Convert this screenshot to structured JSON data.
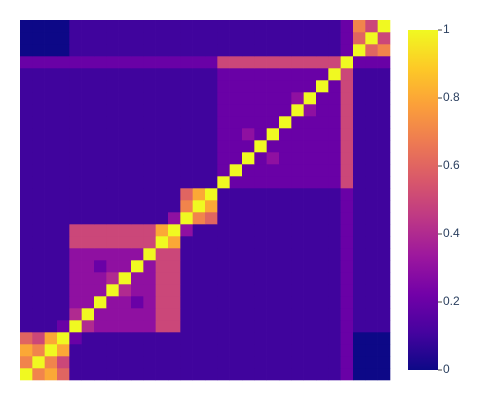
{
  "chart_data": {
    "type": "heatmap",
    "colorscale": [
      "#0d0887",
      "#46039f",
      "#7201a8",
      "#9c179e",
      "#bd3786",
      "#d8576b",
      "#ed7953",
      "#fb9f3a",
      "#fdca26",
      "#f0f921"
    ],
    "zlim": [
      0,
      1
    ],
    "zticks": [
      0,
      0.2,
      0.4,
      0.6,
      0.8,
      1
    ],
    "z": [
      [
        1,
        0.7,
        0.8,
        0.6,
        0.1,
        0.1,
        0.1,
        0.1,
        0.1,
        0.1,
        0.1,
        0.1,
        0.1,
        0.1,
        0.1,
        0.1,
        0.1,
        0.1,
        0.1,
        0.1,
        0.1,
        0.1,
        0.1,
        0.1,
        0.1,
        0.1,
        0.2,
        0,
        0,
        0
      ],
      [
        0.7,
        1,
        0.7,
        0.5,
        0.1,
        0.1,
        0.1,
        0.1,
        0.1,
        0.1,
        0.1,
        0.1,
        0.1,
        0.1,
        0.1,
        0.1,
        0.1,
        0.1,
        0.1,
        0.1,
        0.1,
        0.1,
        0.1,
        0.1,
        0.1,
        0.1,
        0.2,
        0,
        0,
        0
      ],
      [
        0.8,
        0.7,
        1,
        0.8,
        0.1,
        0.1,
        0.1,
        0.1,
        0.1,
        0.1,
        0.1,
        0.1,
        0.1,
        0.1,
        0.1,
        0.1,
        0.1,
        0.1,
        0.1,
        0.1,
        0.1,
        0.1,
        0.1,
        0.1,
        0.1,
        0.1,
        0.2,
        0,
        0,
        0
      ],
      [
        0.6,
        0.5,
        0.8,
        1,
        0.2,
        0.1,
        0.1,
        0.1,
        0.1,
        0.1,
        0.1,
        0.1,
        0.1,
        0.1,
        0.1,
        0.1,
        0.1,
        0.1,
        0.1,
        0.1,
        0.1,
        0.1,
        0.1,
        0.1,
        0.1,
        0.1,
        0.2,
        0,
        0,
        0
      ],
      [
        0.1,
        0.1,
        0.1,
        0.2,
        1,
        0.4,
        0.3,
        0.3,
        0.3,
        0.3,
        0.3,
        0.5,
        0.5,
        0.1,
        0.1,
        0.1,
        0.1,
        0.1,
        0.1,
        0.1,
        0.1,
        0.1,
        0.1,
        0.1,
        0.1,
        0.1,
        0.2,
        0.1,
        0.1,
        0.1
      ],
      [
        0.1,
        0.1,
        0.1,
        0.1,
        0.4,
        1,
        0.3,
        0.3,
        0.3,
        0.3,
        0.3,
        0.5,
        0.5,
        0.1,
        0.1,
        0.1,
        0.1,
        0.1,
        0.1,
        0.1,
        0.1,
        0.1,
        0.1,
        0.1,
        0.1,
        0.1,
        0.2,
        0.1,
        0.1,
        0.1
      ],
      [
        0.1,
        0.1,
        0.1,
        0.1,
        0.3,
        0.3,
        1,
        0.3,
        0.3,
        0.2,
        0.3,
        0.5,
        0.5,
        0.1,
        0.1,
        0.1,
        0.1,
        0.1,
        0.1,
        0.1,
        0.1,
        0.1,
        0.1,
        0.1,
        0.1,
        0.1,
        0.2,
        0.1,
        0.1,
        0.1
      ],
      [
        0.1,
        0.1,
        0.1,
        0.1,
        0.3,
        0.3,
        0.3,
        1,
        0.4,
        0.3,
        0.3,
        0.5,
        0.5,
        0.1,
        0.1,
        0.1,
        0.1,
        0.1,
        0.1,
        0.1,
        0.1,
        0.1,
        0.1,
        0.1,
        0.1,
        0.1,
        0.2,
        0.1,
        0.1,
        0.1
      ],
      [
        0.1,
        0.1,
        0.1,
        0.1,
        0.3,
        0.3,
        0.3,
        0.4,
        1,
        0.3,
        0.3,
        0.5,
        0.5,
        0.1,
        0.1,
        0.1,
        0.1,
        0.1,
        0.1,
        0.1,
        0.1,
        0.1,
        0.1,
        0.1,
        0.1,
        0.1,
        0.2,
        0.1,
        0.1,
        0.1
      ],
      [
        0.1,
        0.1,
        0.1,
        0.1,
        0.3,
        0.3,
        0.2,
        0.3,
        0.3,
        1,
        0.3,
        0.5,
        0.5,
        0.1,
        0.1,
        0.1,
        0.1,
        0.1,
        0.1,
        0.1,
        0.1,
        0.1,
        0.1,
        0.1,
        0.1,
        0.1,
        0.2,
        0.1,
        0.1,
        0.1
      ],
      [
        0.1,
        0.1,
        0.1,
        0.1,
        0.3,
        0.3,
        0.3,
        0.3,
        0.3,
        0.3,
        1,
        0.5,
        0.5,
        0.1,
        0.1,
        0.1,
        0.1,
        0.1,
        0.1,
        0.1,
        0.1,
        0.1,
        0.1,
        0.1,
        0.1,
        0.1,
        0.2,
        0.1,
        0.1,
        0.1
      ],
      [
        0.1,
        0.1,
        0.1,
        0.1,
        0.5,
        0.5,
        0.5,
        0.5,
        0.5,
        0.5,
        0.5,
        1,
        0.8,
        0.1,
        0.1,
        0.1,
        0.1,
        0.1,
        0.1,
        0.1,
        0.1,
        0.1,
        0.1,
        0.1,
        0.1,
        0.1,
        0.2,
        0.1,
        0.1,
        0.1
      ],
      [
        0.1,
        0.1,
        0.1,
        0.1,
        0.5,
        0.5,
        0.5,
        0.5,
        0.5,
        0.5,
        0.5,
        0.8,
        1,
        0.3,
        0.1,
        0.1,
        0.1,
        0.1,
        0.1,
        0.1,
        0.1,
        0.1,
        0.1,
        0.1,
        0.1,
        0.1,
        0.2,
        0.1,
        0.1,
        0.1
      ],
      [
        0.1,
        0.1,
        0.1,
        0.1,
        0.1,
        0.1,
        0.1,
        0.1,
        0.1,
        0.1,
        0.1,
        0.1,
        0.3,
        1,
        0.7,
        0.6,
        0.1,
        0.1,
        0.1,
        0.1,
        0.1,
        0.1,
        0.1,
        0.1,
        0.1,
        0.1,
        0.2,
        0.1,
        0.1,
        0.1
      ],
      [
        0.1,
        0.1,
        0.1,
        0.1,
        0.1,
        0.1,
        0.1,
        0.1,
        0.1,
        0.1,
        0.1,
        0.1,
        0.1,
        0.7,
        1,
        0.8,
        0.1,
        0.1,
        0.1,
        0.1,
        0.1,
        0.1,
        0.1,
        0.1,
        0.1,
        0.1,
        0.2,
        0.1,
        0.1,
        0.1
      ],
      [
        0.1,
        0.1,
        0.1,
        0.1,
        0.1,
        0.1,
        0.1,
        0.1,
        0.1,
        0.1,
        0.1,
        0.1,
        0.1,
        0.6,
        0.8,
        1,
        0.1,
        0.1,
        0.1,
        0.1,
        0.1,
        0.1,
        0.1,
        0.1,
        0.1,
        0.1,
        0.2,
        0.1,
        0.1,
        0.1
      ],
      [
        0.1,
        0.1,
        0.1,
        0.1,
        0.1,
        0.1,
        0.1,
        0.1,
        0.1,
        0.1,
        0.1,
        0.1,
        0.1,
        0.1,
        0.1,
        0.1,
        1,
        0.2,
        0.2,
        0.2,
        0.2,
        0.2,
        0.2,
        0.2,
        0.2,
        0.2,
        0.5,
        0.1,
        0.1,
        0.1
      ],
      [
        0.1,
        0.1,
        0.1,
        0.1,
        0.1,
        0.1,
        0.1,
        0.1,
        0.1,
        0.1,
        0.1,
        0.1,
        0.1,
        0.1,
        0.1,
        0.1,
        0.2,
        1,
        0.2,
        0.2,
        0.2,
        0.2,
        0.2,
        0.2,
        0.2,
        0.2,
        0.5,
        0.1,
        0.1,
        0.1
      ],
      [
        0.1,
        0.1,
        0.1,
        0.1,
        0.1,
        0.1,
        0.1,
        0.1,
        0.1,
        0.1,
        0.1,
        0.1,
        0.1,
        0.1,
        0.1,
        0.1,
        0.2,
        0.2,
        1,
        0.2,
        0.3,
        0.2,
        0.2,
        0.2,
        0.2,
        0.2,
        0.5,
        0.1,
        0.1,
        0.1
      ],
      [
        0.1,
        0.1,
        0.1,
        0.1,
        0.1,
        0.1,
        0.1,
        0.1,
        0.1,
        0.1,
        0.1,
        0.1,
        0.1,
        0.1,
        0.1,
        0.1,
        0.2,
        0.2,
        0.2,
        1,
        0.2,
        0.2,
        0.2,
        0.2,
        0.2,
        0.2,
        0.5,
        0.1,
        0.1,
        0.1
      ],
      [
        0.1,
        0.1,
        0.1,
        0.1,
        0.1,
        0.1,
        0.1,
        0.1,
        0.1,
        0.1,
        0.1,
        0.1,
        0.1,
        0.1,
        0.1,
        0.1,
        0.2,
        0.2,
        0.3,
        0.2,
        1,
        0.2,
        0.2,
        0.2,
        0.2,
        0.2,
        0.5,
        0.1,
        0.1,
        0.1
      ],
      [
        0.1,
        0.1,
        0.1,
        0.1,
        0.1,
        0.1,
        0.1,
        0.1,
        0.1,
        0.1,
        0.1,
        0.1,
        0.1,
        0.1,
        0.1,
        0.1,
        0.2,
        0.2,
        0.2,
        0.2,
        0.2,
        1,
        0.2,
        0.2,
        0.2,
        0.2,
        0.5,
        0.1,
        0.1,
        0.1
      ],
      [
        0.1,
        0.1,
        0.1,
        0.1,
        0.1,
        0.1,
        0.1,
        0.1,
        0.1,
        0.1,
        0.1,
        0.1,
        0.1,
        0.1,
        0.1,
        0.1,
        0.2,
        0.2,
        0.2,
        0.2,
        0.2,
        0.2,
        1,
        0.3,
        0.2,
        0.2,
        0.5,
        0.1,
        0.1,
        0.1
      ],
      [
        0.1,
        0.1,
        0.1,
        0.1,
        0.1,
        0.1,
        0.1,
        0.1,
        0.1,
        0.1,
        0.1,
        0.1,
        0.1,
        0.1,
        0.1,
        0.1,
        0.2,
        0.2,
        0.2,
        0.2,
        0.2,
        0.2,
        0.3,
        1,
        0.2,
        0.2,
        0.5,
        0.1,
        0.1,
        0.1
      ],
      [
        0.1,
        0.1,
        0.1,
        0.1,
        0.1,
        0.1,
        0.1,
        0.1,
        0.1,
        0.1,
        0.1,
        0.1,
        0.1,
        0.1,
        0.1,
        0.1,
        0.2,
        0.2,
        0.2,
        0.2,
        0.2,
        0.2,
        0.2,
        0.2,
        1,
        0.2,
        0.5,
        0.1,
        0.1,
        0.1
      ],
      [
        0.1,
        0.1,
        0.1,
        0.1,
        0.1,
        0.1,
        0.1,
        0.1,
        0.1,
        0.1,
        0.1,
        0.1,
        0.1,
        0.1,
        0.1,
        0.1,
        0.2,
        0.2,
        0.2,
        0.2,
        0.2,
        0.2,
        0.2,
        0.2,
        0.2,
        1,
        0.5,
        0.1,
        0.1,
        0.1
      ],
      [
        0.2,
        0.2,
        0.2,
        0.2,
        0.2,
        0.2,
        0.2,
        0.2,
        0.2,
        0.2,
        0.2,
        0.2,
        0.2,
        0.2,
        0.2,
        0.2,
        0.5,
        0.5,
        0.5,
        0.5,
        0.5,
        0.5,
        0.5,
        0.5,
        0.5,
        0.5,
        1,
        0.2,
        0.2,
        0.2
      ],
      [
        0,
        0,
        0,
        0,
        0.1,
        0.1,
        0.1,
        0.1,
        0.1,
        0.1,
        0.1,
        0.1,
        0.1,
        0.1,
        0.1,
        0.1,
        0.1,
        0.1,
        0.1,
        0.1,
        0.1,
        0.1,
        0.1,
        0.1,
        0.1,
        0.1,
        0.2,
        1,
        0.6,
        0.7
      ],
      [
        0,
        0,
        0,
        0,
        0.1,
        0.1,
        0.1,
        0.1,
        0.1,
        0.1,
        0.1,
        0.1,
        0.1,
        0.1,
        0.1,
        0.1,
        0.1,
        0.1,
        0.1,
        0.1,
        0.1,
        0.1,
        0.1,
        0.1,
        0.1,
        0.1,
        0.2,
        0.6,
        1,
        0.5
      ],
      [
        0,
        0,
        0,
        0,
        0.1,
        0.1,
        0.1,
        0.1,
        0.1,
        0.1,
        0.1,
        0.1,
        0.1,
        0.1,
        0.1,
        0.1,
        0.1,
        0.1,
        0.1,
        0.1,
        0.1,
        0.1,
        0.1,
        0.1,
        0.1,
        0.1,
        0.2,
        0.7,
        0.5,
        1
      ]
    ]
  }
}
